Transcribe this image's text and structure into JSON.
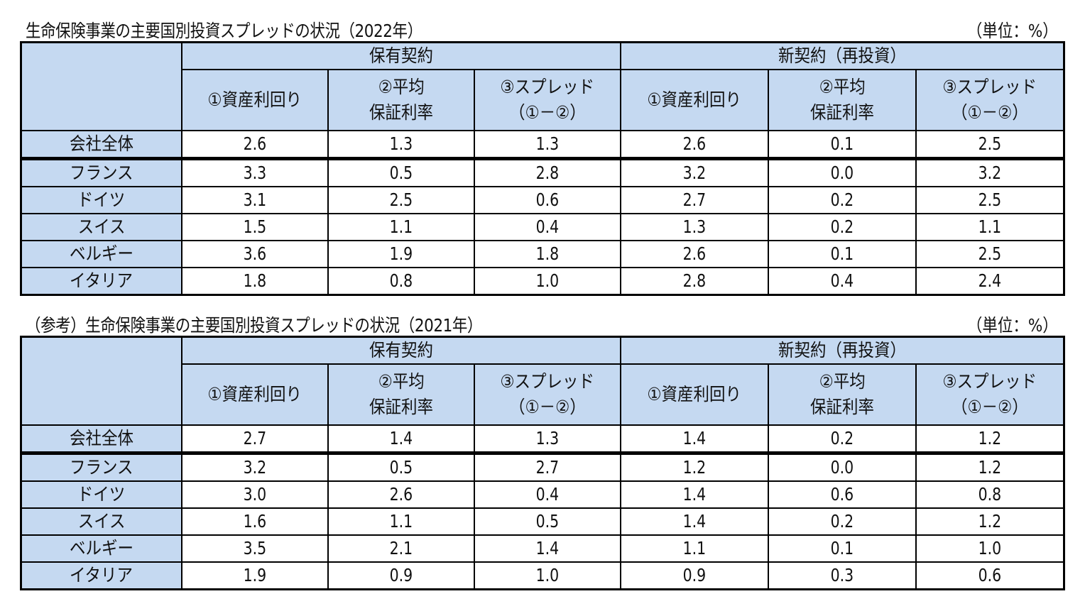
{
  "tables": [
    {
      "title": "生命保険事業の主要国別投資スプレッドの状況（2022年）",
      "unit": "（単位：%）",
      "groups": [
        "保有契約",
        "新契約（再投資）"
      ],
      "subheaders": [
        {
          "line1": "①資産利回り",
          "line2": ""
        },
        {
          "line1": "②平均",
          "line2": "保証利率"
        },
        {
          "line1": "③スプレッド",
          "line2": "（①－②）"
        },
        {
          "line1": "①資産利回り",
          "line2": ""
        },
        {
          "line1": "②平均",
          "line2": "保証利率"
        },
        {
          "line1": "③スプレッド",
          "line2": "（①－②）"
        }
      ],
      "rows": [
        {
          "label": "会社全体",
          "values": [
            "2.6",
            "1.3",
            "1.3",
            "2.6",
            "0.1",
            "2.5"
          ]
        },
        {
          "label": "フランス",
          "values": [
            "3.3",
            "0.5",
            "2.8",
            "3.2",
            "0.0",
            "3.2"
          ]
        },
        {
          "label": "ドイツ",
          "values": [
            "3.1",
            "2.5",
            "0.6",
            "2.7",
            "0.2",
            "2.5"
          ]
        },
        {
          "label": "スイス",
          "values": [
            "1.5",
            "1.1",
            "0.4",
            "1.3",
            "0.2",
            "1.1"
          ]
        },
        {
          "label": "ベルギー",
          "values": [
            "3.6",
            "1.9",
            "1.8",
            "2.6",
            "0.1",
            "2.5"
          ]
        },
        {
          "label": "イタリア",
          "values": [
            "1.8",
            "0.8",
            "1.0",
            "2.8",
            "0.4",
            "2.4"
          ]
        }
      ]
    },
    {
      "title": "（参考）生命保険事業の主要国別投資スプレッドの状況（2021年）",
      "unit": "（単位：%）",
      "groups": [
        "保有契約",
        "新契約（再投資）"
      ],
      "subheaders": [
        {
          "line1": "①資産利回り",
          "line2": ""
        },
        {
          "line1": "②平均",
          "line2": "保証利率"
        },
        {
          "line1": "③スプレッド",
          "line2": "（①－②）"
        },
        {
          "line1": "①資産利回り",
          "line2": ""
        },
        {
          "line1": "②平均",
          "line2": "保証利率"
        },
        {
          "line1": "③スプレッド",
          "line2": "（①－②）"
        }
      ],
      "rows": [
        {
          "label": "会社全体",
          "values": [
            "2.7",
            "1.4",
            "1.3",
            "1.4",
            "0.2",
            "1.2"
          ]
        },
        {
          "label": "フランス",
          "values": [
            "3.2",
            "0.5",
            "2.7",
            "1.2",
            "0.0",
            "1.2"
          ]
        },
        {
          "label": "ドイツ",
          "values": [
            "3.0",
            "2.6",
            "0.4",
            "1.4",
            "0.6",
            "0.8"
          ]
        },
        {
          "label": "スイス",
          "values": [
            "1.6",
            "1.1",
            "0.5",
            "1.4",
            "0.2",
            "1.2"
          ]
        },
        {
          "label": "ベルギー",
          "values": [
            "3.5",
            "2.1",
            "1.4",
            "1.1",
            "0.1",
            "1.0"
          ]
        },
        {
          "label": "イタリア",
          "values": [
            "1.9",
            "0.9",
            "1.0",
            "0.9",
            "0.3",
            "0.6"
          ]
        }
      ]
    }
  ],
  "colors": {
    "header_fill": "#c5d9f1",
    "border": "#000000",
    "cell_fill": "#ffffff"
  }
}
